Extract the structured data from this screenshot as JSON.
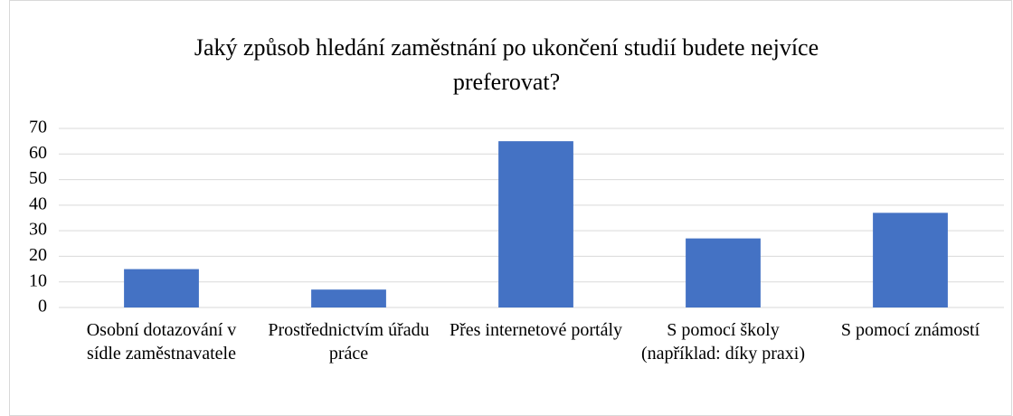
{
  "chart_data": {
    "type": "bar",
    "title": "Jaký způsob hledání zaměstnání po ukončení studií budete nejvíce preferovat?",
    "categories": [
      "Osobní dotazování v sídle zaměstnavatele",
      "Prostřednictvím úřadu práce",
      "Přes internetové portály",
      "S pomocí školy (například: díky praxi)",
      "S pomocí známostí"
    ],
    "values": [
      15,
      7,
      65,
      27,
      37
    ],
    "color": "#4472c4",
    "ylim": [
      0,
      70
    ],
    "yticks": [
      0,
      10,
      20,
      30,
      40,
      50,
      60,
      70
    ],
    "grid": true
  }
}
